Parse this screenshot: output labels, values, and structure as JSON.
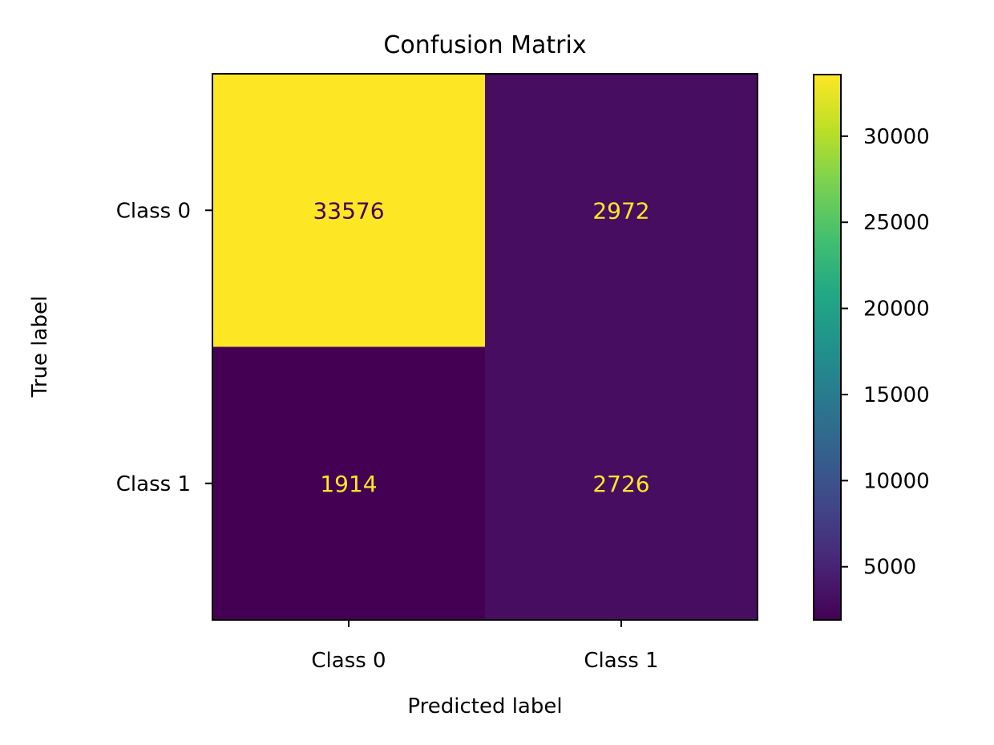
{
  "chart_data": {
    "type": "heatmap",
    "title": "Confusion Matrix",
    "xlabel": "Predicted label",
    "ylabel": "True label",
    "x_categories": [
      "Class 0",
      "Class 1"
    ],
    "y_categories": [
      "Class 0",
      "Class 1"
    ],
    "values": [
      [
        33576,
        2972
      ],
      [
        1914,
        2726
      ]
    ],
    "colormap": "viridis",
    "colorbar": {
      "range": [
        1914,
        33576
      ],
      "ticks": [
        5000,
        10000,
        15000,
        20000,
        25000,
        30000
      ],
      "tick_labels": [
        "5000",
        "10000",
        "15000",
        "20000",
        "25000",
        "30000"
      ]
    },
    "colors": {
      "cell_0_0": "#fde725",
      "cell_0_1": "#470d60",
      "cell_1_0": "#440154",
      "cell_1_1": "#470d60",
      "text_on_light": "#440154",
      "text_on_dark": "#fde725"
    }
  }
}
